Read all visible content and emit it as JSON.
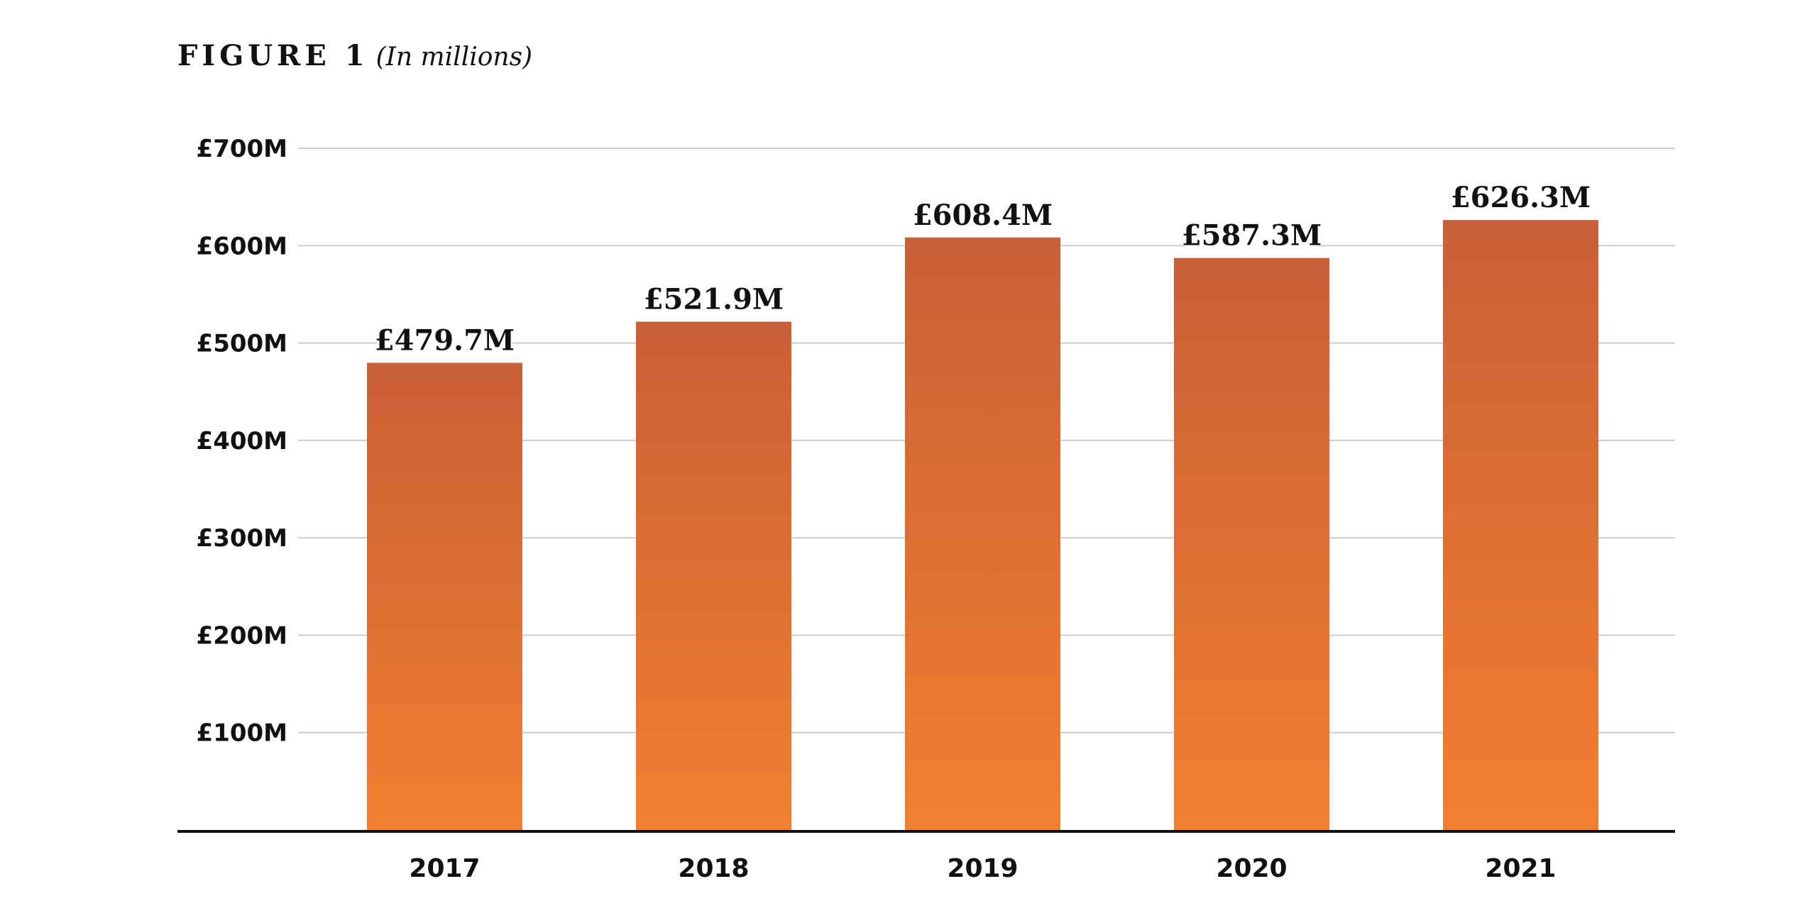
{
  "figure": {
    "title": "FIGURE 1",
    "subtitle": "(In millions)"
  },
  "colors": {
    "bar_top": "#c95f37",
    "bar_bottom": "#f37f30",
    "grid": "#cccccc",
    "axis": "#111111"
  },
  "chart_data": {
    "type": "bar",
    "title": "FIGURE 1",
    "subtitle": "(In millions)",
    "categories": [
      "2017",
      "2018",
      "2019",
      "2020",
      "2021"
    ],
    "values": [
      479.7,
      521.9,
      608.4,
      587.3,
      626.3
    ],
    "data_labels": [
      "£479.7M",
      "£521.9M",
      "£608.4M",
      "£587.3M",
      "£626.3M"
    ],
    "y_ticks": [
      100,
      200,
      300,
      400,
      500,
      600,
      700
    ],
    "y_tick_labels": [
      "£100M",
      "£200M",
      "£300M",
      "£400M",
      "£500M",
      "£600M",
      "£700M"
    ],
    "ylim": [
      0,
      700
    ],
    "xlabel": "",
    "ylabel": "",
    "grid": true,
    "legend": "none"
  }
}
